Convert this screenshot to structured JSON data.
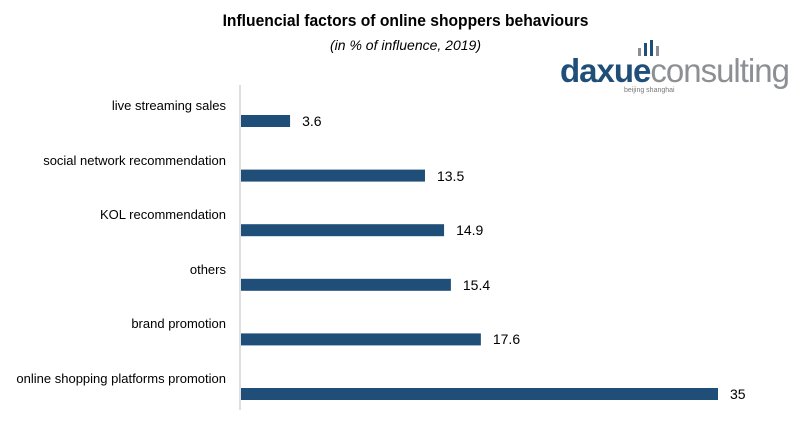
{
  "chart_data": {
    "type": "bar",
    "orientation": "horizontal",
    "title": "Influencial factors of online shoppers behaviours",
    "subtitle": "(in % of influence, 2019)",
    "categories": [
      "live streaming sales",
      "social network recommendation",
      "KOL recommendation",
      "others",
      "brand promotion",
      "online shopping platforms promotion"
    ],
    "values": [
      3.6,
      13.5,
      14.9,
      15.4,
      17.6,
      35
    ],
    "value_labels": [
      "3.6",
      "13.5",
      "14.9",
      "15.4",
      "17.6",
      "35"
    ],
    "xlim": [
      0,
      35
    ],
    "grid": false,
    "bar_color": "#1f4e79"
  },
  "logo": {
    "part1": "daxue",
    "part2": "consulting",
    "tagline": "beijing shanghai",
    "colors": {
      "primary": "#1f4e79",
      "secondary": "#8c8f93"
    }
  }
}
